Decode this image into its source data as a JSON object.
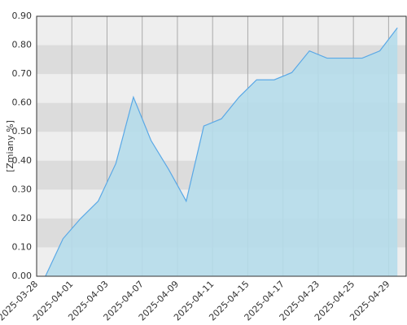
{
  "chart_data": {
    "type": "area",
    "y_label": "[Zmiany %]",
    "categories": [
      "2025-03-28",
      null,
      "2025-04-01",
      null,
      "2025-04-03",
      null,
      "2025-04-07",
      null,
      "2025-04-09",
      null,
      "2025-04-11",
      null,
      "2025-04-15",
      null,
      "2025-04-17",
      null,
      "2025-04-23",
      null,
      "2025-04-25",
      null,
      "2025-04-29"
    ],
    "values": [
      0.0,
      0.13,
      0.2,
      0.26,
      0.39,
      0.62,
      0.47,
      0.37,
      0.26,
      0.52,
      0.545,
      0.62,
      0.68,
      0.68,
      0.705,
      0.78,
      0.755,
      0.755,
      0.755,
      0.78,
      0.86
    ],
    "color": "#5aa8e6",
    "fill": "#b5dbea",
    "ylim": [
      0,
      0.9
    ],
    "yticks": [
      {
        "value": 0,
        "label": "0.00"
      },
      {
        "value": 0.1,
        "label": "0.10"
      },
      {
        "value": 0.2,
        "label": "0.20"
      },
      {
        "value": 0.3,
        "label": "0.30"
      },
      {
        "value": 0.4,
        "label": "0.40"
      },
      {
        "value": 0.5,
        "label": "0.50"
      },
      {
        "value": 0.6,
        "label": "0.60"
      },
      {
        "value": 0.7,
        "label": "0.70"
      },
      {
        "value": 0.8,
        "label": "0.80"
      },
      {
        "value": 0.9,
        "label": "0.90"
      }
    ],
    "grid": true
  }
}
